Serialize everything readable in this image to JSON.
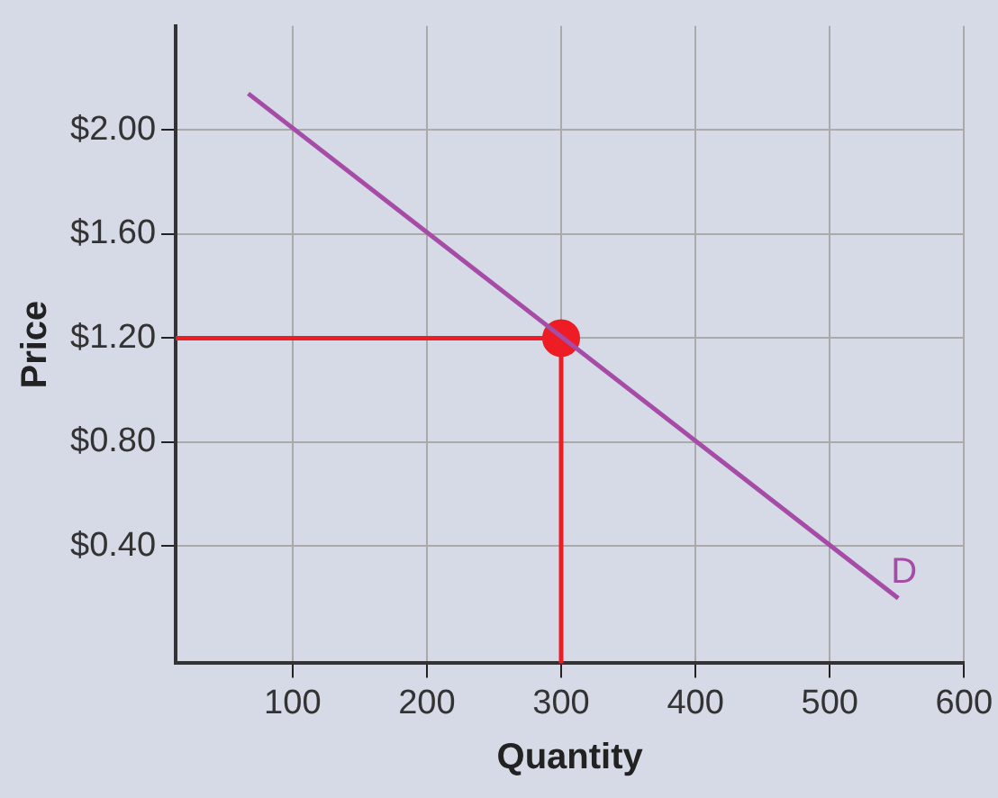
{
  "chart_data": {
    "type": "line",
    "xlabel": "Quantity",
    "ylabel": "Price",
    "xlim": [
      13,
      600
    ],
    "xticks": [
      100,
      200,
      300,
      400,
      500,
      600
    ],
    "ylim": [
      -0.05,
      2.4
    ],
    "yticks": [
      {
        "value": 0.4,
        "label": "$0.40"
      },
      {
        "value": 0.8,
        "label": "$0.80"
      },
      {
        "value": 1.2,
        "label": "$1.20"
      },
      {
        "value": 1.6,
        "label": "$1.60"
      },
      {
        "value": 2.0,
        "label": "$2.00"
      }
    ],
    "grid": true,
    "legend": false,
    "series": [
      {
        "name": "D",
        "color": "#a64ca6",
        "x": [
          67,
          551
        ],
        "values": [
          2.14,
          0.2
        ]
      },
      {
        "color": "#ee1c25",
        "x": [
          13,
          300,
          300
        ],
        "values": [
          1.2,
          1.2,
          -0.05
        ]
      },
      {
        "type": "scatter",
        "color": "#ee1c25",
        "marker": "circle",
        "x": [
          300
        ],
        "values": [
          1.2
        ]
      }
    ]
  }
}
